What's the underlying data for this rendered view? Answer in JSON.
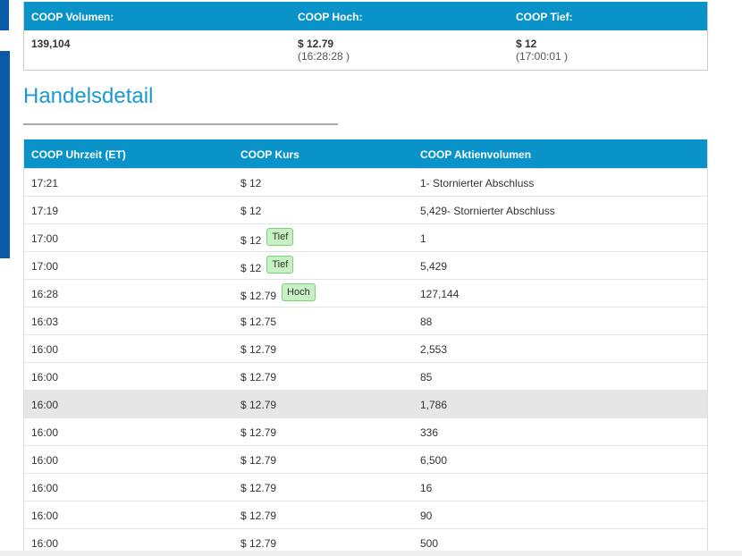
{
  "summary": {
    "headers": [
      "COOP Volumen:",
      "COOP Hoch:",
      "COOP Tief:"
    ],
    "volume": "139,104",
    "high": "$ 12.79",
    "high_time": "(16:28:28 )",
    "low": "$ 12",
    "low_time": "(17:00:01 )"
  },
  "section": {
    "title": "Handelsdetail"
  },
  "detail": {
    "headers": [
      "COOP Uhrzeit (ET)",
      "COOP Kurs",
      "COOP Aktienvolumen"
    ],
    "rows": [
      {
        "time": "17:21",
        "price": "$ 12",
        "badge": "",
        "volume": "1- Stornierter Abschluss"
      },
      {
        "time": "17:19",
        "price": "$ 12",
        "badge": "",
        "volume": "5,429- Stornierter Abschluss"
      },
      {
        "time": "17:00",
        "price": "$ 12",
        "badge": "Tief",
        "volume": "1"
      },
      {
        "time": "17:00",
        "price": "$ 12",
        "badge": "Tief",
        "volume": "5,429"
      },
      {
        "time": "16:28",
        "price": "$ 12.79",
        "badge": "Hoch",
        "volume": "127,144"
      },
      {
        "time": "16:03",
        "price": "$ 12.75",
        "badge": "",
        "volume": "88"
      },
      {
        "time": "16:00",
        "price": "$ 12.79",
        "badge": "",
        "volume": "2,553"
      },
      {
        "time": "16:00",
        "price": "$ 12.79",
        "badge": "",
        "volume": "85"
      },
      {
        "time": "16:00",
        "price": "$ 12.79",
        "badge": "",
        "volume": "1,786"
      },
      {
        "time": "16:00",
        "price": "$ 12.79",
        "badge": "",
        "volume": "336"
      },
      {
        "time": "16:00",
        "price": "$ 12.79",
        "badge": "",
        "volume": "6,500"
      },
      {
        "time": "16:00",
        "price": "$ 12.79",
        "badge": "",
        "volume": "16"
      },
      {
        "time": "16:00",
        "price": "$ 12.79",
        "badge": "",
        "volume": "90"
      },
      {
        "time": "16:00",
        "price": "$ 12.79",
        "badge": "",
        "volume": "500"
      }
    ]
  },
  "colors": {
    "header_blue": "#0993c8",
    "title_blue": "#1a9bd0",
    "sidebar_blue": "#0a5aa8",
    "badge_green": "#c7f0c4"
  }
}
